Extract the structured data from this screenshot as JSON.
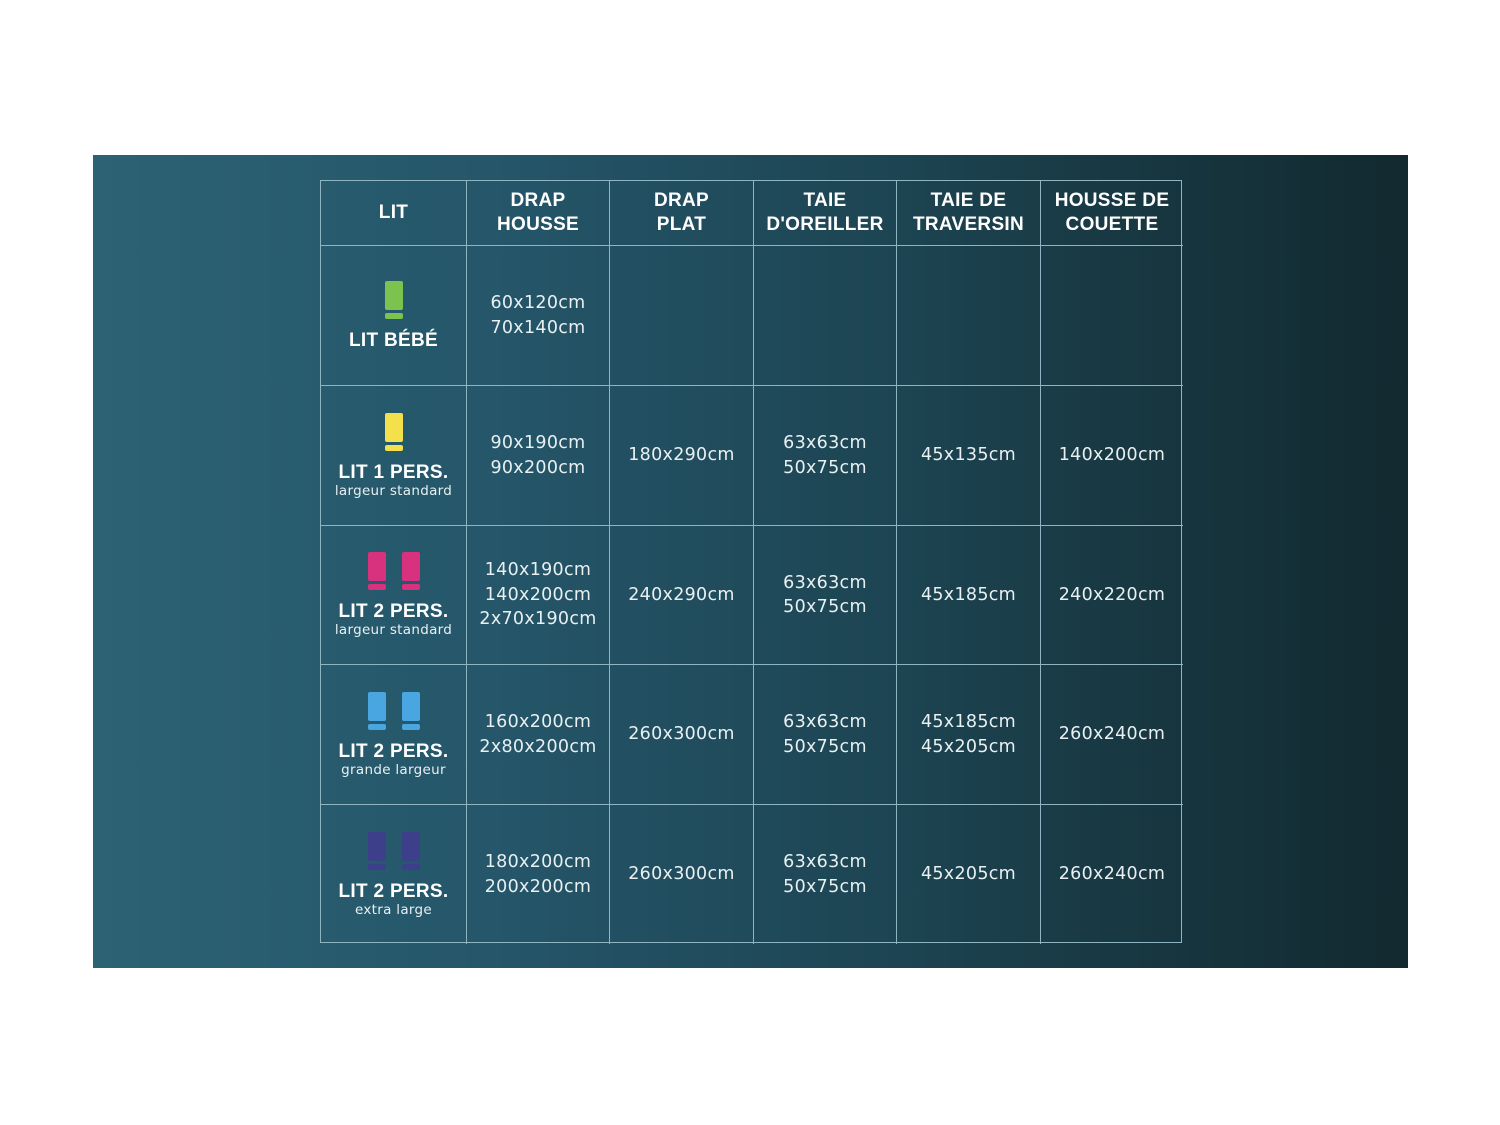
{
  "headers": [
    "LIT",
    "DRAP\nHOUSSE",
    "DRAP\nPLAT",
    "TAIE\nD'OREILLER",
    "TAIE DE\nTRAVERSIN",
    "HOUSSE DE\nCOUETTE"
  ],
  "rows": [
    {
      "bed": "LIT BÉBÉ",
      "sub": "",
      "icon_count": 1,
      "icon_color": "#7cc24f",
      "icon_name": "bed-icon",
      "cells": [
        "60x120cm\n70x140cm",
        "",
        "",
        "",
        ""
      ]
    },
    {
      "bed": "LIT 1 PERS.",
      "sub": "largeur standard",
      "icon_count": 1,
      "icon_color": "#f3e04a",
      "icon_name": "bed-icon",
      "cells": [
        "90x190cm\n90x200cm",
        "180x290cm",
        "63x63cm\n50x75cm",
        "45x135cm",
        "140x200cm"
      ]
    },
    {
      "bed": "LIT 2 PERS.",
      "sub": "largeur standard",
      "icon_count": 2,
      "icon_color": "#d8317e",
      "icon_name": "bed-icon",
      "cells": [
        "140x190cm\n140x200cm\n2x70x190cm",
        "240x290cm",
        "63x63cm\n50x75cm",
        "45x185cm",
        "240x220cm"
      ]
    },
    {
      "bed": "LIT 2 PERS.",
      "sub": "grande largeur",
      "icon_count": 2,
      "icon_color": "#4aa6e0",
      "icon_name": "bed-icon",
      "cells": [
        "160x200cm\n2x80x200cm",
        "260x300cm",
        "63x63cm\n50x75cm",
        "45x185cm\n45x205cm",
        "260x240cm"
      ]
    },
    {
      "bed": "LIT 2 PERS.",
      "sub": "extra large",
      "icon_count": 2,
      "icon_color": "#3d3f8a",
      "icon_name": "bed-icon",
      "cells": [
        "180x200cm\n200x200cm",
        "260x300cm",
        "63x63cm\n50x75cm",
        "45x205cm",
        "260x240cm"
      ]
    }
  ]
}
